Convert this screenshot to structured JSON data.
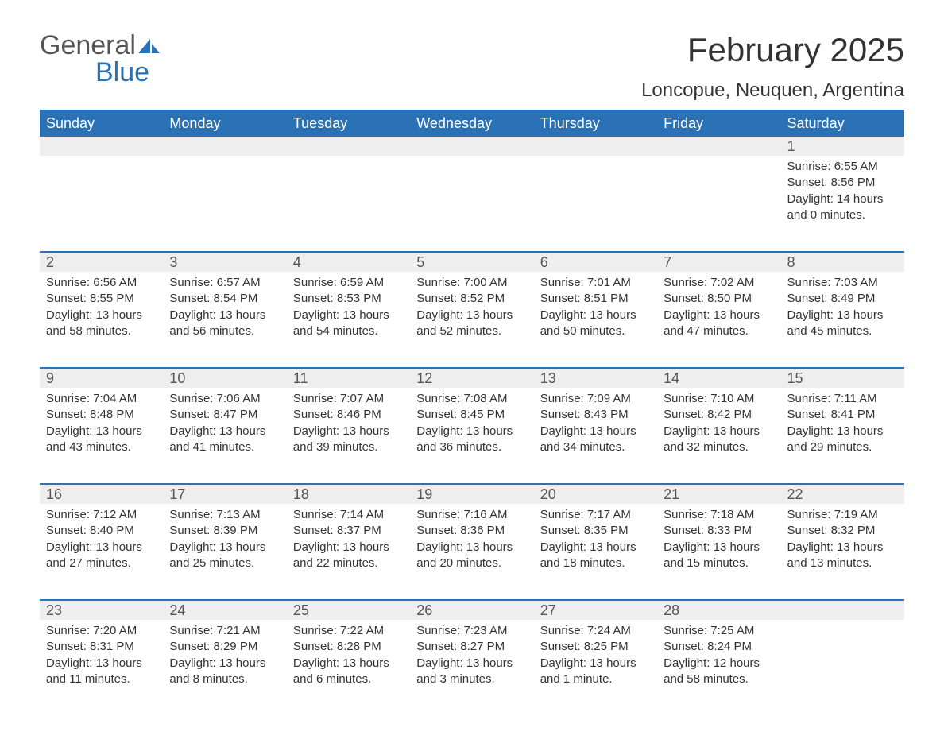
{
  "logo": {
    "word1": "General",
    "word2": "Blue",
    "color_gray": "#555555",
    "color_blue": "#2a72b5",
    "sail_color": "#2a72b5"
  },
  "title": "February 2025",
  "location": "Loncopue, Neuquen, Argentina",
  "colors": {
    "header_bg": "#2a72b5",
    "header_text": "#ffffff",
    "daynum_bg": "#eeeeee",
    "daynum_text": "#555555",
    "rule": "#2a72b5",
    "body_text": "#333333",
    "page_bg": "#ffffff"
  },
  "weekdays": [
    "Sunday",
    "Monday",
    "Tuesday",
    "Wednesday",
    "Thursday",
    "Friday",
    "Saturday"
  ],
  "weeks": [
    [
      {
        "day": "",
        "lines": []
      },
      {
        "day": "",
        "lines": []
      },
      {
        "day": "",
        "lines": []
      },
      {
        "day": "",
        "lines": []
      },
      {
        "day": "",
        "lines": []
      },
      {
        "day": "",
        "lines": []
      },
      {
        "day": "1",
        "lines": [
          "Sunrise: 6:55 AM",
          "Sunset: 8:56 PM",
          "Daylight: 14 hours and 0 minutes."
        ]
      }
    ],
    [
      {
        "day": "2",
        "lines": [
          "Sunrise: 6:56 AM",
          "Sunset: 8:55 PM",
          "Daylight: 13 hours and 58 minutes."
        ]
      },
      {
        "day": "3",
        "lines": [
          "Sunrise: 6:57 AM",
          "Sunset: 8:54 PM",
          "Daylight: 13 hours and 56 minutes."
        ]
      },
      {
        "day": "4",
        "lines": [
          "Sunrise: 6:59 AM",
          "Sunset: 8:53 PM",
          "Daylight: 13 hours and 54 minutes."
        ]
      },
      {
        "day": "5",
        "lines": [
          "Sunrise: 7:00 AM",
          "Sunset: 8:52 PM",
          "Daylight: 13 hours and 52 minutes."
        ]
      },
      {
        "day": "6",
        "lines": [
          "Sunrise: 7:01 AM",
          "Sunset: 8:51 PM",
          "Daylight: 13 hours and 50 minutes."
        ]
      },
      {
        "day": "7",
        "lines": [
          "Sunrise: 7:02 AM",
          "Sunset: 8:50 PM",
          "Daylight: 13 hours and 47 minutes."
        ]
      },
      {
        "day": "8",
        "lines": [
          "Sunrise: 7:03 AM",
          "Sunset: 8:49 PM",
          "Daylight: 13 hours and 45 minutes."
        ]
      }
    ],
    [
      {
        "day": "9",
        "lines": [
          "Sunrise: 7:04 AM",
          "Sunset: 8:48 PM",
          "Daylight: 13 hours and 43 minutes."
        ]
      },
      {
        "day": "10",
        "lines": [
          "Sunrise: 7:06 AM",
          "Sunset: 8:47 PM",
          "Daylight: 13 hours and 41 minutes."
        ]
      },
      {
        "day": "11",
        "lines": [
          "Sunrise: 7:07 AM",
          "Sunset: 8:46 PM",
          "Daylight: 13 hours and 39 minutes."
        ]
      },
      {
        "day": "12",
        "lines": [
          "Sunrise: 7:08 AM",
          "Sunset: 8:45 PM",
          "Daylight: 13 hours and 36 minutes."
        ]
      },
      {
        "day": "13",
        "lines": [
          "Sunrise: 7:09 AM",
          "Sunset: 8:43 PM",
          "Daylight: 13 hours and 34 minutes."
        ]
      },
      {
        "day": "14",
        "lines": [
          "Sunrise: 7:10 AM",
          "Sunset: 8:42 PM",
          "Daylight: 13 hours and 32 minutes."
        ]
      },
      {
        "day": "15",
        "lines": [
          "Sunrise: 7:11 AM",
          "Sunset: 8:41 PM",
          "Daylight: 13 hours and 29 minutes."
        ]
      }
    ],
    [
      {
        "day": "16",
        "lines": [
          "Sunrise: 7:12 AM",
          "Sunset: 8:40 PM",
          "Daylight: 13 hours and 27 minutes."
        ]
      },
      {
        "day": "17",
        "lines": [
          "Sunrise: 7:13 AM",
          "Sunset: 8:39 PM",
          "Daylight: 13 hours and 25 minutes."
        ]
      },
      {
        "day": "18",
        "lines": [
          "Sunrise: 7:14 AM",
          "Sunset: 8:37 PM",
          "Daylight: 13 hours and 22 minutes."
        ]
      },
      {
        "day": "19",
        "lines": [
          "Sunrise: 7:16 AM",
          "Sunset: 8:36 PM",
          "Daylight: 13 hours and 20 minutes."
        ]
      },
      {
        "day": "20",
        "lines": [
          "Sunrise: 7:17 AM",
          "Sunset: 8:35 PM",
          "Daylight: 13 hours and 18 minutes."
        ]
      },
      {
        "day": "21",
        "lines": [
          "Sunrise: 7:18 AM",
          "Sunset: 8:33 PM",
          "Daylight: 13 hours and 15 minutes."
        ]
      },
      {
        "day": "22",
        "lines": [
          "Sunrise: 7:19 AM",
          "Sunset: 8:32 PM",
          "Daylight: 13 hours and 13 minutes."
        ]
      }
    ],
    [
      {
        "day": "23",
        "lines": [
          "Sunrise: 7:20 AM",
          "Sunset: 8:31 PM",
          "Daylight: 13 hours and 11 minutes."
        ]
      },
      {
        "day": "24",
        "lines": [
          "Sunrise: 7:21 AM",
          "Sunset: 8:29 PM",
          "Daylight: 13 hours and 8 minutes."
        ]
      },
      {
        "day": "25",
        "lines": [
          "Sunrise: 7:22 AM",
          "Sunset: 8:28 PM",
          "Daylight: 13 hours and 6 minutes."
        ]
      },
      {
        "day": "26",
        "lines": [
          "Sunrise: 7:23 AM",
          "Sunset: 8:27 PM",
          "Daylight: 13 hours and 3 minutes."
        ]
      },
      {
        "day": "27",
        "lines": [
          "Sunrise: 7:24 AM",
          "Sunset: 8:25 PM",
          "Daylight: 13 hours and 1 minute."
        ]
      },
      {
        "day": "28",
        "lines": [
          "Sunrise: 7:25 AM",
          "Sunset: 8:24 PM",
          "Daylight: 12 hours and 58 minutes."
        ]
      },
      {
        "day": "",
        "lines": []
      }
    ]
  ]
}
